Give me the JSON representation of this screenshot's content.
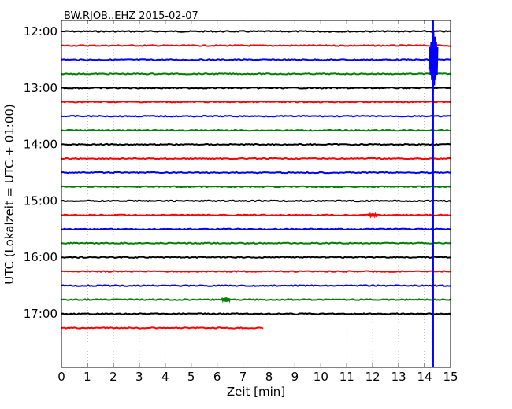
{
  "chart_data": {
    "type": "line",
    "title": "BW.RJOB..EHZ 2015-02-07",
    "xlabel": "Zeit  [min]",
    "ylabel": "UTC (Lokalzeit = UTC + 01:00)",
    "xlim": [
      0,
      15
    ],
    "ylim_hours": [
      12.0,
      17.25
    ],
    "x_ticks": [
      "0",
      "1",
      "2",
      "3",
      "4",
      "5",
      "6",
      "7",
      "8",
      "9",
      "10",
      "11",
      "12",
      "13",
      "14",
      "15"
    ],
    "y_ticks": [
      {
        "label": "12:00",
        "hour": 12.0
      },
      {
        "label": "13:00",
        "hour": 13.0
      },
      {
        "label": "14:00",
        "hour": 14.0
      },
      {
        "label": "15:00",
        "hour": 15.0
      },
      {
        "label": "16:00",
        "hour": 16.0
      },
      {
        "label": "17:00",
        "hour": 17.0
      }
    ],
    "grid": "x-dotted",
    "line_colors": [
      "#000000",
      "#ff0000",
      "#0000ff",
      "#008000"
    ],
    "traces": [
      {
        "start": "12:00",
        "color": "#000000",
        "end_min": 15
      },
      {
        "start": "12:15",
        "color": "#ff0000",
        "end_min": 15
      },
      {
        "start": "12:30",
        "color": "#0000ff",
        "end_min": 15
      },
      {
        "start": "12:45",
        "color": "#008000",
        "end_min": 15
      },
      {
        "start": "13:00",
        "color": "#000000",
        "end_min": 15
      },
      {
        "start": "13:15",
        "color": "#ff0000",
        "end_min": 15
      },
      {
        "start": "13:30",
        "color": "#0000ff",
        "end_min": 15
      },
      {
        "start": "13:45",
        "color": "#008000",
        "end_min": 15
      },
      {
        "start": "14:00",
        "color": "#000000",
        "end_min": 15
      },
      {
        "start": "14:15",
        "color": "#ff0000",
        "end_min": 15
      },
      {
        "start": "14:30",
        "color": "#0000ff",
        "end_min": 15
      },
      {
        "start": "14:45",
        "color": "#008000",
        "end_min": 15
      },
      {
        "start": "15:00",
        "color": "#000000",
        "end_min": 15
      },
      {
        "start": "15:15",
        "color": "#ff0000",
        "end_min": 15
      },
      {
        "start": "15:30",
        "color": "#0000ff",
        "end_min": 15
      },
      {
        "start": "15:45",
        "color": "#008000",
        "end_min": 15
      },
      {
        "start": "16:00",
        "color": "#000000",
        "end_min": 15
      },
      {
        "start": "16:15",
        "color": "#ff0000",
        "end_min": 15
      },
      {
        "start": "16:30",
        "color": "#0000ff",
        "end_min": 15
      },
      {
        "start": "16:45",
        "color": "#008000",
        "end_min": 15
      },
      {
        "start": "17:00",
        "color": "#000000",
        "end_min": 15
      },
      {
        "start": "17:15",
        "color": "#ff0000",
        "end_min": 7.8
      }
    ],
    "events": [
      {
        "trace_index": 2,
        "time_min": 14.35,
        "color": "#0000ff",
        "amplitude_hours": 0.5,
        "note": "large event clipping across traces"
      },
      {
        "trace_index": 13,
        "time_min": 12.0,
        "color": "#ff0000",
        "amplitude_hours": 0.03
      },
      {
        "trace_index": 19,
        "time_min": 6.35,
        "color": "#008000",
        "amplitude_hours": 0.04
      },
      {
        "trace_index": 2,
        "time_min": 14.33,
        "color": "#0000ff",
        "amplitude_hours": 5.2,
        "note": "vertical blue clipped line through plot"
      }
    ]
  }
}
